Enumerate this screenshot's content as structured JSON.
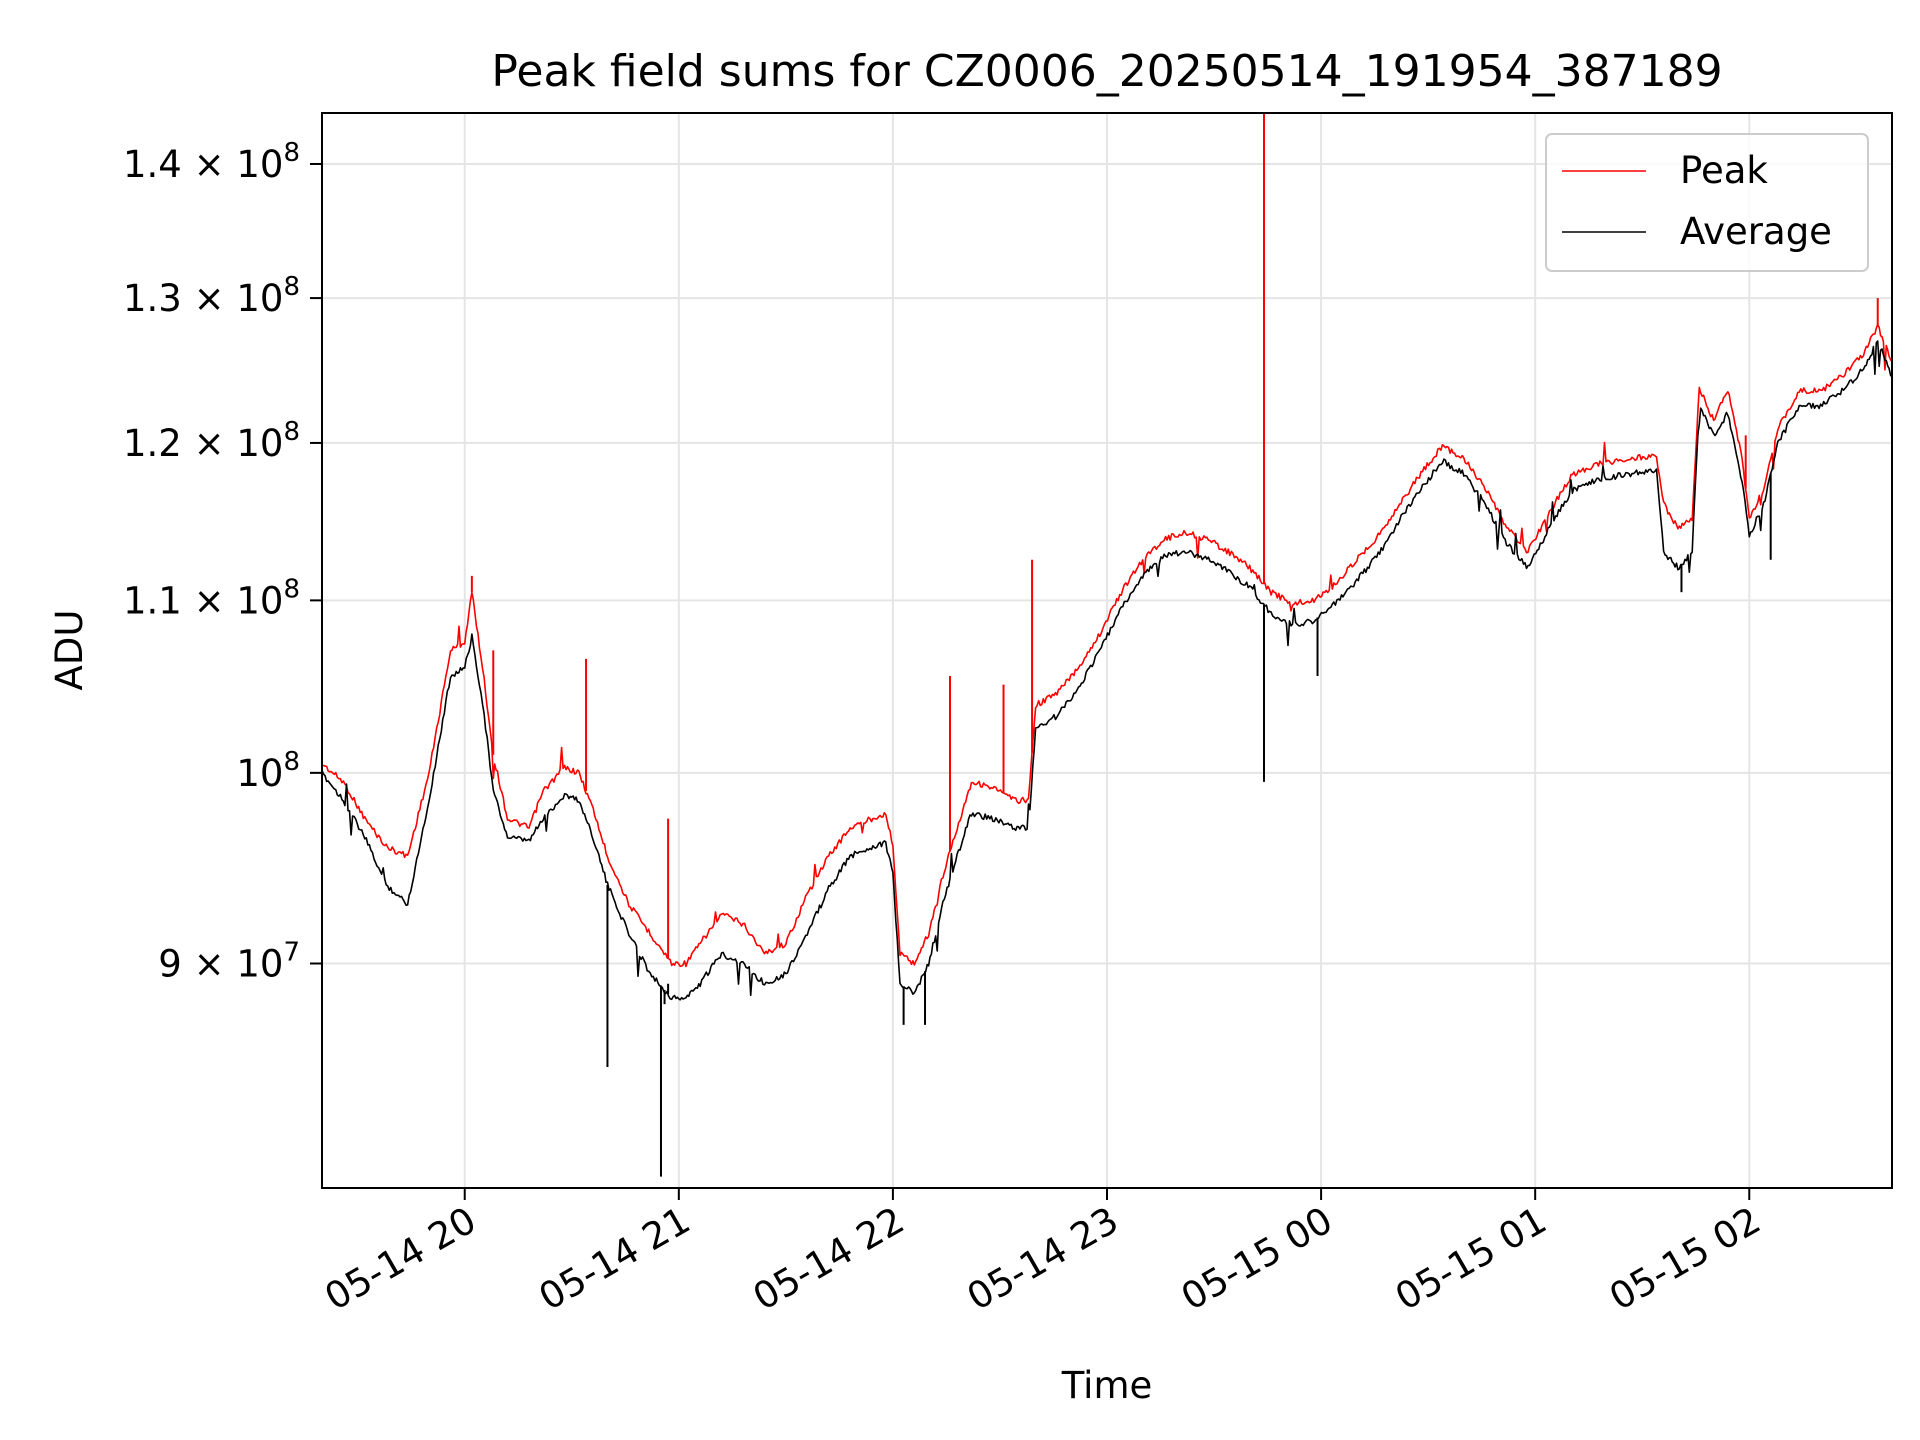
{
  "chart_data": {
    "type": "line",
    "title": "Peak field sums for CZ0006_20250514_191954_387189",
    "xlabel": "Time",
    "ylabel": "ADU",
    "y_scale": "log",
    "ylim": [
      79500000,
      144000000
    ],
    "xlim": [
      "2025-05-14 19:20",
      "2025-05-15 02:40"
    ],
    "grid": true,
    "legend_position": "top-right",
    "x_ticks": [
      {
        "t": "2025-05-14 20:00",
        "label": "05-14 20"
      },
      {
        "t": "2025-05-14 21:00",
        "label": "05-14 21"
      },
      {
        "t": "2025-05-14 22:00",
        "label": "05-14 22"
      },
      {
        "t": "2025-05-14 23:00",
        "label": "05-14 23"
      },
      {
        "t": "2025-05-15 00:00",
        "label": "05-15 00"
      },
      {
        "t": "2025-05-15 01:00",
        "label": "05-15 01"
      },
      {
        "t": "2025-05-15 02:00",
        "label": "05-15 02"
      }
    ],
    "y_ticks": [
      {
        "value": 90000000,
        "mant": "9",
        "exp": "7"
      },
      {
        "value": 100000000,
        "mant": "",
        "exp": "8"
      },
      {
        "value": 110000000,
        "mant": "1.1",
        "exp": "8"
      },
      {
        "value": 120000000,
        "mant": "1.2",
        "exp": "8"
      },
      {
        "value": 130000000,
        "mant": "1.3",
        "exp": "8"
      },
      {
        "value": 140000000,
        "mant": "1.4",
        "exp": "8"
      }
    ],
    "series": [
      {
        "name": "Peak",
        "color": "#ff0000",
        "points": [
          [
            "2025-05-14 19:20",
            100500000
          ],
          [
            "2025-05-14 19:26",
            99500000
          ],
          [
            "2025-05-14 19:32",
            97500000
          ],
          [
            "2025-05-14 19:38",
            96000000
          ],
          [
            "2025-05-14 19:44",
            95500000
          ],
          [
            "2025-05-14 19:50",
            100000000
          ],
          [
            "2025-05-14 19:56",
            107000000
          ],
          [
            "2025-05-14 20:00",
            107500000
          ],
          [
            "2025-05-14 20:02",
            110500000
          ],
          [
            "2025-05-14 20:05",
            106000000
          ],
          [
            "2025-05-14 20:08",
            101000000
          ],
          [
            "2025-05-14 20:12",
            97500000
          ],
          [
            "2025-05-14 20:18",
            97000000
          ],
          [
            "2025-05-14 20:22",
            99000000
          ],
          [
            "2025-05-14 20:28",
            100300000
          ],
          [
            "2025-05-14 20:32",
            100000000
          ],
          [
            "2025-05-14 20:36",
            98000000
          ],
          [
            "2025-05-14 20:40",
            95500000
          ],
          [
            "2025-05-14 20:46",
            93000000
          ],
          [
            "2025-05-14 20:52",
            91500000
          ],
          [
            "2025-05-14 20:58",
            90000000
          ],
          [
            "2025-05-14 21:02",
            90000000
          ],
          [
            "2025-05-14 21:06",
            91000000
          ],
          [
            "2025-05-14 21:12",
            92500000
          ],
          [
            "2025-05-14 21:18",
            92000000
          ],
          [
            "2025-05-14 21:24",
            90500000
          ],
          [
            "2025-05-14 21:30",
            91000000
          ],
          [
            "2025-05-14 21:36",
            93500000
          ],
          [
            "2025-05-14 21:42",
            95500000
          ],
          [
            "2025-05-14 21:48",
            97000000
          ],
          [
            "2025-05-14 21:54",
            97500000
          ],
          [
            "2025-05-14 21:58",
            97800000
          ],
          [
            "2025-05-14 22:00",
            96000000
          ],
          [
            "2025-05-14 22:02",
            90500000
          ],
          [
            "2025-05-14 22:06",
            90000000
          ],
          [
            "2025-05-14 22:10",
            91500000
          ],
          [
            "2025-05-14 22:14",
            94500000
          ],
          [
            "2025-05-14 22:18",
            97000000
          ],
          [
            "2025-05-14 22:22",
            99500000
          ],
          [
            "2025-05-14 22:28",
            99200000
          ],
          [
            "2025-05-14 22:34",
            98500000
          ],
          [
            "2025-05-14 22:38",
            98500000
          ],
          [
            "2025-05-14 22:40",
            103800000
          ],
          [
            "2025-05-14 22:46",
            104500000
          ],
          [
            "2025-05-14 22:52",
            106000000
          ],
          [
            "2025-05-14 22:58",
            108000000
          ],
          [
            "2025-05-14 23:04",
            110500000
          ],
          [
            "2025-05-14 23:10",
            112500000
          ],
          [
            "2025-05-14 23:16",
            113800000
          ],
          [
            "2025-05-14 23:22",
            114200000
          ],
          [
            "2025-05-14 23:28",
            113800000
          ],
          [
            "2025-05-14 23:34",
            113000000
          ],
          [
            "2025-05-14 23:40",
            112000000
          ],
          [
            "2025-05-14 23:46",
            110500000
          ],
          [
            "2025-05-14 23:52",
            109800000
          ],
          [
            "2025-05-14 23:58",
            110000000
          ],
          [
            "2025-05-15 00:04",
            111000000
          ],
          [
            "2025-05-15 00:10",
            112500000
          ],
          [
            "2025-05-15 00:16",
            114000000
          ],
          [
            "2025-05-15 00:22",
            116000000
          ],
          [
            "2025-05-15 00:28",
            118000000
          ],
          [
            "2025-05-15 00:34",
            119800000
          ],
          [
            "2025-05-15 00:40",
            119000000
          ],
          [
            "2025-05-15 00:46",
            117000000
          ],
          [
            "2025-05-15 00:52",
            114500000
          ],
          [
            "2025-05-15 00:58",
            113000000
          ],
          [
            "2025-05-15 01:04",
            115500000
          ],
          [
            "2025-05-15 01:10",
            117800000
          ],
          [
            "2025-05-15 01:16",
            118500000
          ],
          [
            "2025-05-15 01:22",
            118800000
          ],
          [
            "2025-05-15 01:28",
            119000000
          ],
          [
            "2025-05-15 01:34",
            119200000
          ],
          [
            "2025-05-15 01:36",
            116000000
          ],
          [
            "2025-05-15 01:40",
            114500000
          ],
          [
            "2025-05-15 01:44",
            115000000
          ],
          [
            "2025-05-15 01:46",
            123800000
          ],
          [
            "2025-05-15 01:48",
            122500000
          ],
          [
            "2025-05-15 01:50",
            121500000
          ],
          [
            "2025-05-15 01:54",
            123500000
          ],
          [
            "2025-05-15 01:58",
            119000000
          ],
          [
            "2025-05-15 02:00",
            115000000
          ],
          [
            "2025-05-15 02:04",
            117000000
          ],
          [
            "2025-05-15 02:08",
            121000000
          ],
          [
            "2025-05-15 02:14",
            123500000
          ],
          [
            "2025-05-15 02:20",
            123500000
          ],
          [
            "2025-05-15 02:26",
            124500000
          ],
          [
            "2025-05-15 02:32",
            126000000
          ],
          [
            "2025-05-15 02:36",
            128000000
          ],
          [
            "2025-05-15 02:40",
            125500000
          ]
        ],
        "spikes": [
          [
            "2025-05-14 20:02",
            111500000
          ],
          [
            "2025-05-14 20:08",
            107000000
          ],
          [
            "2025-05-14 20:34",
            106500000
          ],
          [
            "2025-05-14 20:57",
            97500000
          ],
          [
            "2025-05-14 22:16",
            105500000
          ],
          [
            "2025-05-14 22:31",
            105000000
          ],
          [
            "2025-05-14 22:39",
            112500000
          ],
          [
            "2025-05-14 23:44",
            144000000
          ],
          [
            "2025-05-15 01:59",
            120500000
          ],
          [
            "2025-05-15 02:36",
            130000000
          ]
        ]
      },
      {
        "name": "Average",
        "color": "#000000",
        "points": [
          [
            "2025-05-14 19:20",
            100000000
          ],
          [
            "2025-05-14 19:26",
            98500000
          ],
          [
            "2025-05-14 19:32",
            96500000
          ],
          [
            "2025-05-14 19:38",
            94000000
          ],
          [
            "2025-05-14 19:44",
            93000000
          ],
          [
            "2025-05-14 19:50",
            98500000
          ],
          [
            "2025-05-14 19:56",
            105500000
          ],
          [
            "2025-05-14 20:00",
            106000000
          ],
          [
            "2025-05-14 20:02",
            107800000
          ],
          [
            "2025-05-14 20:05",
            104000000
          ],
          [
            "2025-05-14 20:08",
            99000000
          ],
          [
            "2025-05-14 20:12",
            96500000
          ],
          [
            "2025-05-14 20:18",
            96300000
          ],
          [
            "2025-05-14 20:22",
            97500000
          ],
          [
            "2025-05-14 20:28",
            98800000
          ],
          [
            "2025-05-14 20:32",
            98500000
          ],
          [
            "2025-05-14 20:36",
            96500000
          ],
          [
            "2025-05-14 20:40",
            94000000
          ],
          [
            "2025-05-14 20:46",
            91500000
          ],
          [
            "2025-05-14 20:52",
            89500000
          ],
          [
            "2025-05-14 20:58",
            88300000
          ],
          [
            "2025-05-14 21:02",
            88300000
          ],
          [
            "2025-05-14 21:06",
            89000000
          ],
          [
            "2025-05-14 21:12",
            90500000
          ],
          [
            "2025-05-14 21:18",
            90000000
          ],
          [
            "2025-05-14 21:24",
            89000000
          ],
          [
            "2025-05-14 21:30",
            89500000
          ],
          [
            "2025-05-14 21:36",
            91500000
          ],
          [
            "2025-05-14 21:42",
            93800000
          ],
          [
            "2025-05-14 21:48",
            95500000
          ],
          [
            "2025-05-14 21:54",
            96000000
          ],
          [
            "2025-05-14 21:58",
            96200000
          ],
          [
            "2025-05-14 22:00",
            94500000
          ],
          [
            "2025-05-14 22:02",
            89000000
          ],
          [
            "2025-05-14 22:06",
            88500000
          ],
          [
            "2025-05-14 22:10",
            90000000
          ],
          [
            "2025-05-14 22:14",
            93000000
          ],
          [
            "2025-05-14 22:18",
            95500000
          ],
          [
            "2025-05-14 22:22",
            97800000
          ],
          [
            "2025-05-14 22:28",
            97500000
          ],
          [
            "2025-05-14 22:34",
            97000000
          ],
          [
            "2025-05-14 22:38",
            97000000
          ],
          [
            "2025-05-14 22:40",
            102500000
          ],
          [
            "2025-05-14 22:46",
            103200000
          ],
          [
            "2025-05-14 22:52",
            104800000
          ],
          [
            "2025-05-14 22:58",
            107000000
          ],
          [
            "2025-05-14 23:04",
            109500000
          ],
          [
            "2025-05-14 23:10",
            111500000
          ],
          [
            "2025-05-14 23:16",
            112700000
          ],
          [
            "2025-05-14 23:22",
            113000000
          ],
          [
            "2025-05-14 23:28",
            112600000
          ],
          [
            "2025-05-14 23:34",
            111800000
          ],
          [
            "2025-05-14 23:40",
            110800000
          ],
          [
            "2025-05-14 23:46",
            109200000
          ],
          [
            "2025-05-14 23:52",
            108500000
          ],
          [
            "2025-05-14 23:58",
            108800000
          ],
          [
            "2025-05-15 00:04",
            109800000
          ],
          [
            "2025-05-15 00:10",
            111200000
          ],
          [
            "2025-05-15 00:16",
            112800000
          ],
          [
            "2025-05-15 00:22",
            115000000
          ],
          [
            "2025-05-15 00:28",
            117000000
          ],
          [
            "2025-05-15 00:34",
            118800000
          ],
          [
            "2025-05-15 00:40",
            118000000
          ],
          [
            "2025-05-15 00:46",
            116000000
          ],
          [
            "2025-05-15 00:52",
            113500000
          ],
          [
            "2025-05-15 00:58",
            112000000
          ],
          [
            "2025-05-15 01:04",
            114500000
          ],
          [
            "2025-05-15 01:10",
            116800000
          ],
          [
            "2025-05-15 01:16",
            117500000
          ],
          [
            "2025-05-15 01:22",
            117800000
          ],
          [
            "2025-05-15 01:28",
            118000000
          ],
          [
            "2025-05-15 01:34",
            118200000
          ],
          [
            "2025-05-15 01:36",
            113000000
          ],
          [
            "2025-05-15 01:40",
            112000000
          ],
          [
            "2025-05-15 01:44",
            113000000
          ],
          [
            "2025-05-15 01:46",
            122500000
          ],
          [
            "2025-05-15 01:48",
            121500000
          ],
          [
            "2025-05-15 01:50",
            120500000
          ],
          [
            "2025-05-15 01:54",
            122000000
          ],
          [
            "2025-05-15 01:58",
            117500000
          ],
          [
            "2025-05-15 02:00",
            114000000
          ],
          [
            "2025-05-15 02:04",
            116000000
          ],
          [
            "2025-05-15 02:08",
            120000000
          ],
          [
            "2025-05-15 02:14",
            122500000
          ],
          [
            "2025-05-15 02:20",
            122500000
          ],
          [
            "2025-05-15 02:26",
            123500000
          ],
          [
            "2025-05-15 02:32",
            125000000
          ],
          [
            "2025-05-15 02:36",
            127000000
          ],
          [
            "2025-05-15 02:40",
            124500000
          ]
        ],
        "spikes": [
          [
            "2025-05-14 20:57",
            89000000
          ],
          [
            "2025-05-14 20:40",
            85000000
          ],
          [
            "2025-05-14 20:55",
            80000000
          ],
          [
            "2025-05-14 20:56",
            88000000
          ],
          [
            "2025-05-14 22:03",
            87000000
          ],
          [
            "2025-05-14 22:09",
            87000000
          ],
          [
            "2025-05-14 23:44",
            99500000
          ],
          [
            "2025-05-14 23:59",
            105500000
          ],
          [
            "2025-05-15 01:41",
            110500000
          ],
          [
            "2025-05-15 02:06",
            112500000
          ]
        ]
      }
    ]
  }
}
